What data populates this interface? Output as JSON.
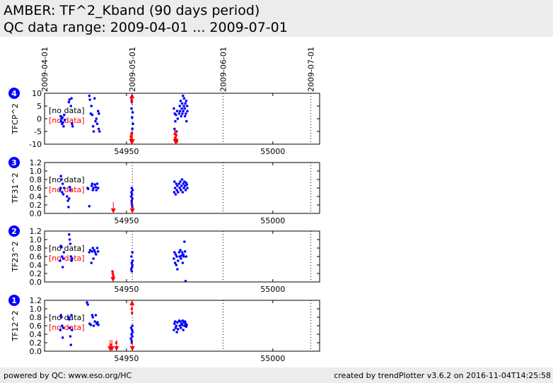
{
  "header": {
    "title": "AMBER: TF^2_Kband (90 days period)",
    "subtitle": "QC data range: 2009-04-01 ... 2009-07-01"
  },
  "footer": {
    "left": "powered by QC: www.eso.org/HC",
    "right": "created by trendPlotter v3.6.2 on 2016-11-04T14:25:58"
  },
  "colors": {
    "data": "#0000ff",
    "outlier": "#ff0000",
    "header_bg": "#ececec",
    "badge": "#0000ff"
  },
  "chart_data": {
    "type": "scatter",
    "xlabel": "mjd-obs",
    "xlim": [
      54922,
      55016
    ],
    "x_ticks": [
      54950,
      55000
    ],
    "date_lines": [
      {
        "label": "2009-04-01",
        "mjd": 54922
      },
      {
        "label": "2009-05-01",
        "mjd": 54952
      },
      {
        "label": "2009-06-01",
        "mjd": 54983
      },
      {
        "label": "2009-07-01",
        "mjd": 55013
      }
    ],
    "nodata_text": "[no data]",
    "panels": [
      {
        "badge": "4",
        "ylabel": "TFCP^2",
        "ylim": [
          -10,
          10
        ],
        "yticks": [
          -10,
          -5,
          0,
          5,
          10
        ],
        "points": [
          [
            54927.5,
            1
          ],
          [
            54927.6,
            -1
          ],
          [
            54927.8,
            0
          ],
          [
            54928,
            -2
          ],
          [
            54928.1,
            0.5
          ],
          [
            54928.3,
            -1.5
          ],
          [
            54928.5,
            -3
          ],
          [
            54928.7,
            1.5
          ],
          [
            54928.9,
            -0.5
          ],
          [
            54930.3,
            6.5
          ],
          [
            54930.5,
            7.5
          ],
          [
            54931,
            5
          ],
          [
            54931.2,
            8
          ],
          [
            54931.4,
            -2
          ],
          [
            54931.6,
            -3
          ],
          [
            54937.3,
            9
          ],
          [
            54937.5,
            7.5
          ],
          [
            54937.8,
            2
          ],
          [
            54938,
            5
          ],
          [
            54938.3,
            1.5
          ],
          [
            54938.6,
            -3
          ],
          [
            54938.8,
            -5
          ],
          [
            54939.1,
            8
          ],
          [
            54939.4,
            -1
          ],
          [
            54939.7,
            0
          ],
          [
            54940,
            -2
          ],
          [
            54940.3,
            3
          ],
          [
            54940.5,
            -4
          ],
          [
            54940.6,
            2
          ],
          [
            54940.8,
            -5
          ],
          [
            54951.7,
            4
          ],
          [
            54951.8,
            7
          ],
          [
            54951.9,
            0.5
          ],
          [
            54952,
            -4
          ],
          [
            54952.1,
            2.5
          ],
          [
            54952.2,
            -2
          ],
          [
            54966.2,
            4
          ],
          [
            54966.4,
            -4
          ],
          [
            54966.5,
            2
          ],
          [
            54966.7,
            -1
          ],
          [
            54966.9,
            1.5
          ],
          [
            54967.1,
            -5
          ],
          [
            54967.3,
            3
          ],
          [
            54967.5,
            0
          ],
          [
            54968,
            2
          ],
          [
            54968.2,
            5
          ],
          [
            54968.3,
            3
          ],
          [
            54968.5,
            7
          ],
          [
            54968.7,
            1
          ],
          [
            54968.9,
            4
          ],
          [
            54969,
            6
          ],
          [
            54969.1,
            2
          ],
          [
            54969.3,
            9
          ],
          [
            54969.4,
            3
          ],
          [
            54969.6,
            5
          ],
          [
            54969.7,
            8
          ],
          [
            54969.9,
            4
          ],
          [
            54970,
            1
          ],
          [
            54970.1,
            6
          ],
          [
            54970.3,
            2
          ],
          [
            54970.4,
            7
          ],
          [
            54970.5,
            -1
          ],
          [
            54970.7,
            5
          ],
          [
            54970.8,
            3
          ]
        ],
        "outliers": [
          [
            54951.5,
            -7
          ],
          [
            54951.6,
            -8
          ],
          [
            54951.7,
            -6
          ],
          [
            54951.8,
            -9
          ],
          [
            54951.9,
            -5.5
          ],
          [
            54951.7,
            8
          ],
          [
            54951.8,
            6.5
          ],
          [
            54966.5,
            -6
          ],
          [
            54966.6,
            -7.5
          ],
          [
            54966.7,
            -5
          ],
          [
            54966.9,
            -8
          ],
          [
            54967,
            -6.5
          ],
          [
            54967.2,
            -9
          ]
        ],
        "arrows_down": [
          54951.7,
          54952.0,
          54966.7,
          54967.0
        ],
        "arrows_up": [
          54951.9
        ]
      },
      {
        "badge": "3",
        "ylabel": "TF31^2",
        "ylim": [
          0,
          1.2
        ],
        "yticks": [
          0.0,
          0.2,
          0.4,
          0.6,
          0.8,
          1.0,
          1.2
        ],
        "points": [
          [
            54927.3,
            0.55
          ],
          [
            54927.5,
            0.6
          ],
          [
            54927.6,
            0.88
          ],
          [
            54927.8,
            0.8
          ],
          [
            54928,
            0.5
          ],
          [
            54928.2,
            0.7
          ],
          [
            54928.4,
            0.45
          ],
          [
            54928.7,
            0.6
          ],
          [
            54929.7,
            0.4
          ],
          [
            54930,
            0.3
          ],
          [
            54930.2,
            0.15
          ],
          [
            54930.4,
            0.35
          ],
          [
            54930.6,
            0.62
          ],
          [
            54930.8,
            0.55
          ],
          [
            54936.7,
            0.6
          ],
          [
            54936.9,
            0.58
          ],
          [
            54937.3,
            0.17
          ],
          [
            54938.1,
            0.65
          ],
          [
            54938.3,
            0.7
          ],
          [
            54938.5,
            0.55
          ],
          [
            54938.7,
            0.6
          ],
          [
            54939.2,
            0.68
          ],
          [
            54939.5,
            0.62
          ],
          [
            54939.7,
            0.55
          ],
          [
            54940,
            0.7
          ],
          [
            54940.3,
            0.6
          ],
          [
            54951.6,
            0.4
          ],
          [
            54951.7,
            0.5
          ],
          [
            54951.8,
            0.3
          ],
          [
            54951.8,
            0.6
          ],
          [
            54951.9,
            0.2
          ],
          [
            54951.9,
            0.45
          ],
          [
            54952,
            0.35
          ],
          [
            54952.1,
            0.55
          ],
          [
            54952,
            0.15
          ],
          [
            54951.8,
            0.25
          ],
          [
            54966.3,
            0.5
          ],
          [
            54966.4,
            0.75
          ],
          [
            54966.6,
            0.6
          ],
          [
            54966.8,
            0.45
          ],
          [
            54967,
            0.7
          ],
          [
            54967.2,
            0.55
          ],
          [
            54967.4,
            0.65
          ],
          [
            54967.6,
            0.5
          ],
          [
            54968,
            0.7
          ],
          [
            54968.2,
            0.6
          ],
          [
            54968.4,
            0.75
          ],
          [
            54968.6,
            0.55
          ],
          [
            54968.8,
            0.65
          ],
          [
            54969,
            0.8
          ],
          [
            54969.2,
            0.5
          ],
          [
            54969.4,
            0.7
          ],
          [
            54969.6,
            0.6
          ],
          [
            54969.8,
            0.75
          ],
          [
            54970,
            0.65
          ],
          [
            54970.2,
            0.55
          ],
          [
            54970.4,
            0.72
          ],
          [
            54970.6,
            0.68
          ],
          [
            54970.8,
            0.6
          ]
        ],
        "outliers": [],
        "arrows_down": [
          54945.5,
          54952.0
        ],
        "arrows_up": []
      },
      {
        "badge": "2",
        "ylabel": "TF23^2",
        "ylim": [
          0,
          1.2
        ],
        "yticks": [
          0.0,
          0.2,
          0.4,
          0.6,
          0.8,
          1.0,
          1.2
        ],
        "points": [
          [
            54927.3,
            0.5
          ],
          [
            54927.6,
            0.85
          ],
          [
            54927.8,
            0.82
          ],
          [
            54928,
            0.6
          ],
          [
            54928.2,
            0.35
          ],
          [
            54928.4,
            0.55
          ],
          [
            54928.6,
            0.7
          ],
          [
            54930.4,
            1.12
          ],
          [
            54930.6,
            1.0
          ],
          [
            54930.8,
            0.9
          ],
          [
            54931,
            0.6
          ],
          [
            54931.2,
            0.5
          ],
          [
            54931.4,
            0.55
          ],
          [
            54937.3,
            0.7
          ],
          [
            54937.6,
            0.75
          ],
          [
            54938,
            0.45
          ],
          [
            54938.3,
            0.72
          ],
          [
            54938.5,
            0.8
          ],
          [
            54938.7,
            0.55
          ],
          [
            54939,
            0.75
          ],
          [
            54939.3,
            0.7
          ],
          [
            54939.6,
            0.65
          ],
          [
            54940,
            0.8
          ],
          [
            54940.3,
            0.72
          ],
          [
            54951.6,
            0.3
          ],
          [
            54951.7,
            0.6
          ],
          [
            54951.8,
            0.45
          ],
          [
            54951.9,
            0.35
          ],
          [
            54952,
            0.7
          ],
          [
            54952.1,
            0.5
          ],
          [
            54951.8,
            0.25
          ],
          [
            54952,
            0.4
          ],
          [
            54966.2,
            0.55
          ],
          [
            54966.4,
            0.7
          ],
          [
            54966.6,
            0.45
          ],
          [
            54966.8,
            0.65
          ],
          [
            54967,
            0.4
          ],
          [
            54967.2,
            0.6
          ],
          [
            54967.4,
            0.3
          ],
          [
            54967.6,
            0.5
          ],
          [
            54968,
            0.7
          ],
          [
            54968.2,
            0.6
          ],
          [
            54968.4,
            0.75
          ],
          [
            54968.6,
            0.55
          ],
          [
            54968.8,
            0.62
          ],
          [
            54969,
            0.7
          ],
          [
            54969.2,
            0.45
          ],
          [
            54969.4,
            0.65
          ],
          [
            54969.6,
            0.6
          ],
          [
            54969.8,
            0.95
          ],
          [
            54970,
            0.72
          ],
          [
            54970.2,
            0.02
          ],
          [
            54970.4,
            0.6
          ]
        ],
        "outliers": [
          [
            54945.2,
            0.25
          ],
          [
            54945.3,
            0.2
          ],
          [
            54945.5,
            0.15
          ],
          [
            54945.3,
            0.1
          ]
        ],
        "arrows_down": [
          54945.4
        ],
        "arrows_up": []
      },
      {
        "badge": "1",
        "ylabel": "TF12^2",
        "ylim": [
          0,
          1.2
        ],
        "yticks": [
          0.0,
          0.2,
          0.4,
          0.6,
          0.8,
          1.0,
          1.2
        ],
        "points": [
          [
            54927.4,
            0.5
          ],
          [
            54927.6,
            0.85
          ],
          [
            54927.8,
            0.8
          ],
          [
            54928,
            0.6
          ],
          [
            54928.2,
            0.32
          ],
          [
            54928.4,
            0.55
          ],
          [
            54930.2,
            0.8
          ],
          [
            54930.4,
            0.75
          ],
          [
            54930.6,
            0.55
          ],
          [
            54930.8,
            0.35
          ],
          [
            54931,
            0.15
          ],
          [
            54931.2,
            0.85
          ],
          [
            54931.4,
            0.5
          ],
          [
            54936.5,
            1.15
          ],
          [
            54936.8,
            1.1
          ],
          [
            54937.4,
            0.65
          ],
          [
            54937.8,
            0.62
          ],
          [
            54938.3,
            0.85
          ],
          [
            54938.5,
            0.8
          ],
          [
            54938.8,
            0.6
          ],
          [
            54939.2,
            0.7
          ],
          [
            54939.5,
            0.85
          ],
          [
            54939.8,
            0.65
          ],
          [
            54940.1,
            0.68
          ],
          [
            54940.4,
            0.62
          ],
          [
            54951.5,
            0.3
          ],
          [
            54951.6,
            0.55
          ],
          [
            54951.7,
            0.4
          ],
          [
            54951.8,
            0.25
          ],
          [
            54951.9,
            0.5
          ],
          [
            54952,
            0.35
          ],
          [
            54952.1,
            0.45
          ],
          [
            54951.8,
            0.2
          ],
          [
            54952,
            0.6
          ],
          [
            54966.2,
            0.5
          ],
          [
            54966.4,
            0.65
          ],
          [
            54966.6,
            0.7
          ],
          [
            54966.8,
            0.55
          ],
          [
            54967,
            0.6
          ],
          [
            54967.2,
            0.45
          ],
          [
            54967.4,
            0.68
          ],
          [
            54967.6,
            0.52
          ],
          [
            54968,
            0.72
          ],
          [
            54968.2,
            0.6
          ],
          [
            54968.4,
            0.7
          ],
          [
            54968.6,
            0.55
          ],
          [
            54968.8,
            0.65
          ],
          [
            54969,
            0.62
          ],
          [
            54969.2,
            0.72
          ],
          [
            54969.4,
            0.5
          ],
          [
            54969.6,
            0.68
          ],
          [
            54969.8,
            0.6
          ],
          [
            54970,
            0.7
          ],
          [
            54970.2,
            0.65
          ],
          [
            54970.4,
            0.58
          ],
          [
            54970.6,
            0.62
          ]
        ],
        "outliers": [
          [
            54951.8,
            1.0
          ],
          [
            54951.9,
            0.9
          ],
          [
            54944.6,
            0.15
          ],
          [
            54946.5,
            0.2
          ]
        ],
        "arrows_down": [
          54944.4,
          54945.0,
          54946.6,
          54952.0
        ],
        "arrows_up": [
          54951.9
        ]
      }
    ]
  }
}
